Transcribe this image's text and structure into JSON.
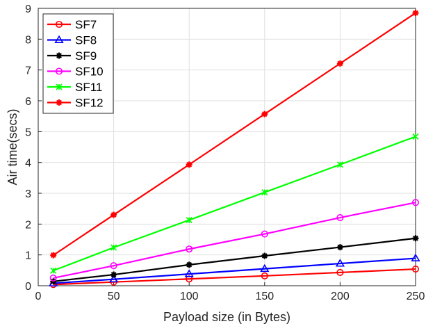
{
  "chart_data": {
    "type": "line",
    "title": "",
    "xlabel": "Payload size (in Bytes)",
    "ylabel": "Air time(secs)",
    "xlim": [
      0,
      250
    ],
    "ylim": [
      0,
      9
    ],
    "xticks": [
      0,
      50,
      100,
      150,
      200,
      250
    ],
    "yticks": [
      0,
      1,
      2,
      3,
      4,
      5,
      6,
      7,
      8,
      9
    ],
    "grid": true,
    "legend_position": "top-left",
    "x": [
      10,
      50,
      100,
      150,
      200,
      250
    ],
    "series": [
      {
        "name": "SF7",
        "color": "#ff0000",
        "marker": "circle",
        "values": [
          0.04,
          0.12,
          0.22,
          0.32,
          0.43,
          0.54
        ]
      },
      {
        "name": "SF8",
        "color": "#0000ff",
        "marker": "triangle",
        "values": [
          0.08,
          0.21,
          0.38,
          0.55,
          0.72,
          0.89
        ]
      },
      {
        "name": "SF9",
        "color": "#000000",
        "marker": "star",
        "values": [
          0.14,
          0.36,
          0.68,
          0.97,
          1.25,
          1.54
        ]
      },
      {
        "name": "SF10",
        "color": "#ff00ff",
        "marker": "circle",
        "values": [
          0.25,
          0.65,
          1.19,
          1.68,
          2.21,
          2.7
        ]
      },
      {
        "name": "SF11",
        "color": "#00ff00",
        "marker": "x-star",
        "values": [
          0.49,
          1.24,
          2.13,
          3.03,
          3.93,
          4.84
        ]
      },
      {
        "name": "SF12",
        "color": "#ff0000",
        "marker": "star",
        "values": [
          0.99,
          2.3,
          3.93,
          5.57,
          7.21,
          8.85
        ]
      }
    ]
  }
}
